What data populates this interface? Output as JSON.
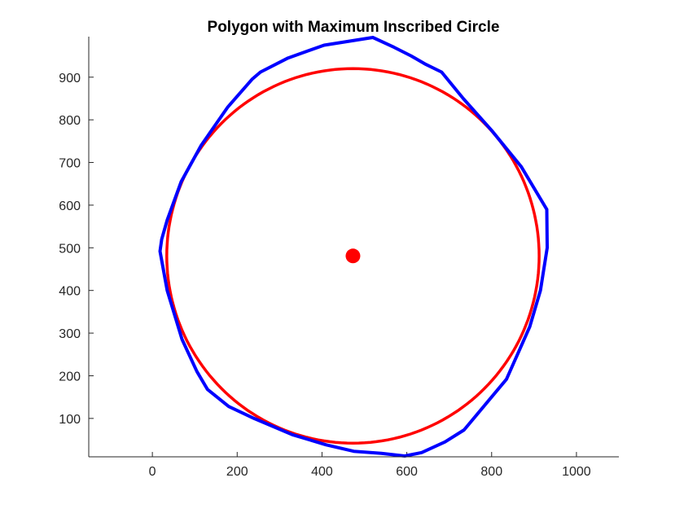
{
  "chart_data": {
    "type": "line",
    "title": "Polygon with Maximum Inscribed Circle",
    "xlabel": "",
    "ylabel": "",
    "xlim": [
      -150,
      1100
    ],
    "ylim": [
      10,
      995
    ],
    "xticks": [
      0,
      200,
      400,
      600,
      800,
      1000
    ],
    "yticks": [
      100,
      200,
      300,
      400,
      500,
      600,
      700,
      800,
      900
    ],
    "grid": false,
    "legend": "none",
    "axes_box": "left-bottom",
    "polygon": {
      "color": "#0000ff",
      "points": [
        [
          520,
          993
        ],
        [
          570,
          970
        ],
        [
          610,
          950
        ],
        [
          645,
          930
        ],
        [
          682,
          912
        ],
        [
          733,
          850
        ],
        [
          800,
          775
        ],
        [
          870,
          690
        ],
        [
          930,
          590
        ],
        [
          931,
          500
        ],
        [
          915,
          400
        ],
        [
          890,
          315
        ],
        [
          835,
          192
        ],
        [
          735,
          73
        ],
        [
          690,
          45
        ],
        [
          635,
          20
        ],
        [
          595,
          12
        ],
        [
          540,
          18
        ],
        [
          475,
          23
        ],
        [
          410,
          38
        ],
        [
          330,
          62
        ],
        [
          240,
          100
        ],
        [
          180,
          128
        ],
        [
          130,
          168
        ],
        [
          105,
          210
        ],
        [
          70,
          285
        ],
        [
          35,
          400
        ],
        [
          18,
          492
        ],
        [
          22,
          520
        ],
        [
          35,
          565
        ],
        [
          68,
          655
        ],
        [
          115,
          740
        ],
        [
          178,
          830
        ],
        [
          235,
          895
        ],
        [
          255,
          912
        ],
        [
          320,
          945
        ],
        [
          405,
          975
        ],
        [
          520,
          993
        ]
      ]
    },
    "circle": {
      "color": "#ff0000",
      "center": [
        473,
        481
      ],
      "radius": 439
    },
    "center_marker": {
      "color": "#ff0000",
      "point": [
        473,
        481
      ]
    }
  }
}
